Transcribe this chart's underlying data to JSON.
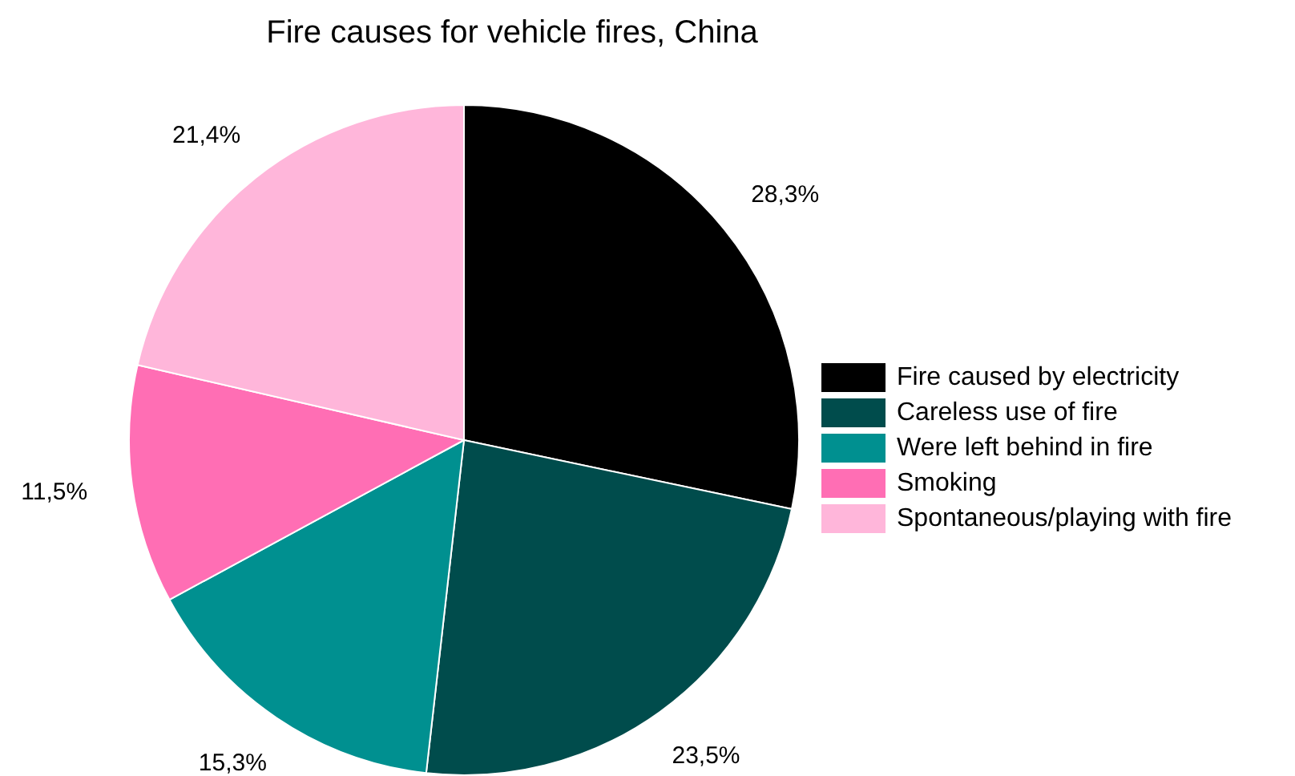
{
  "chart_data": {
    "type": "pie",
    "title": "Fire causes for vehicle fires, China",
    "categories": [
      "Fire caused by electricity",
      "Careless use of fire",
      "Were left behind in fire",
      "Smoking",
      "Spontaneous/playing with fire"
    ],
    "values": [
      28.3,
      23.5,
      15.3,
      11.5,
      21.4
    ],
    "colors": [
      "#000000",
      "#004c4c",
      "#009090",
      "#ff6eb4",
      "#ffb6da"
    ],
    "value_labels": [
      "28,3%",
      "23,5%",
      "15,3%",
      "11,5%",
      "21,4%"
    ],
    "legend": "right"
  }
}
